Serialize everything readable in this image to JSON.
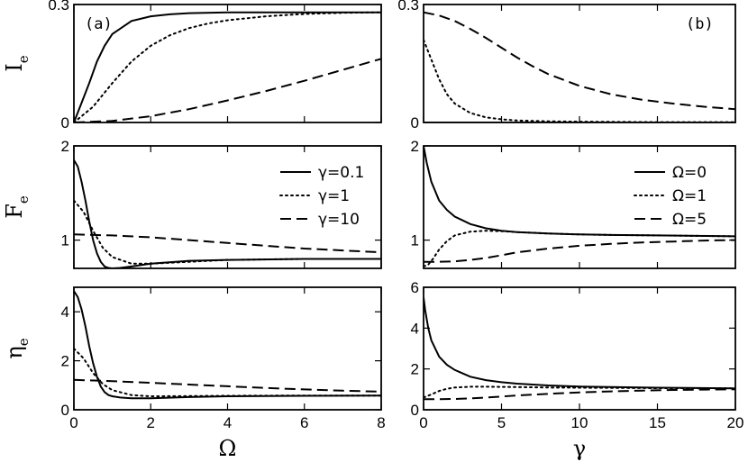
{
  "chart_data": [
    {
      "id": "ie-omega",
      "type": "line",
      "panel_tag": "(a)",
      "ylabel": "I",
      "ylabel_sub": "e",
      "xlabel": "",
      "xlim": [
        0,
        8
      ],
      "ylim": [
        0,
        0.3
      ],
      "xticks": [
        0,
        2,
        4,
        6,
        8
      ],
      "xticklabels": [],
      "yticks": [
        0,
        0.3
      ],
      "yticklabels": [
        "0",
        "0.3"
      ],
      "legend": null,
      "series": [
        {
          "name": "γ=0.1",
          "dash": "solid",
          "x": [
            0,
            0.2,
            0.4,
            0.6,
            0.8,
            1,
            1.5,
            2,
            2.5,
            3,
            4,
            5,
            6,
            7,
            8
          ],
          "y": [
            0,
            0.05,
            0.1,
            0.155,
            0.195,
            0.225,
            0.258,
            0.27,
            0.275,
            0.278,
            0.28,
            0.28,
            0.28,
            0.28,
            0.28
          ]
        },
        {
          "name": "γ=1",
          "dash": "dotted",
          "x": [
            0,
            0.5,
            1,
            1.5,
            2,
            2.5,
            3,
            3.5,
            4,
            5,
            6,
            7,
            8
          ],
          "y": [
            0,
            0.04,
            0.1,
            0.155,
            0.195,
            0.222,
            0.24,
            0.252,
            0.26,
            0.27,
            0.276,
            0.279,
            0.28
          ]
        },
        {
          "name": "γ=10",
          "dash": "dashed",
          "x": [
            0,
            1,
            2,
            3,
            4,
            5,
            6,
            7,
            8
          ],
          "y": [
            0,
            0.004,
            0.016,
            0.034,
            0.056,
            0.08,
            0.106,
            0.134,
            0.162
          ]
        }
      ]
    },
    {
      "id": "ie-gamma",
      "type": "line",
      "panel_tag": "(b)",
      "ylabel": "",
      "ylabel_sub": "",
      "xlabel": "",
      "xlim": [
        0,
        20
      ],
      "ylim": [
        0,
        0.3
      ],
      "xticks": [
        0,
        5,
        10,
        15,
        20
      ],
      "xticklabels": [],
      "yticks": [
        0,
        0.3
      ],
      "yticklabels": [
        "0",
        "0.3"
      ],
      "legend": null,
      "series": [
        {
          "name": "Ω=0",
          "dash": "solid",
          "x": [
            0,
            20
          ],
          "y": [
            0,
            0
          ]
        },
        {
          "name": "Ω=1",
          "dash": "dotted",
          "x": [
            0,
            0.5,
            1,
            1.5,
            2,
            3,
            4,
            5,
            6,
            8,
            10,
            15,
            20
          ],
          "y": [
            0.21,
            0.16,
            0.11,
            0.072,
            0.048,
            0.024,
            0.013,
            0.008,
            0.005,
            0.003,
            0.002,
            0.001,
            0.001
          ]
        },
        {
          "name": "Ω=5",
          "dash": "dashed",
          "x": [
            0,
            1,
            2,
            3,
            4,
            5,
            6,
            7,
            8,
            10,
            12,
            14,
            16,
            18,
            20
          ],
          "y": [
            0.28,
            0.272,
            0.258,
            0.238,
            0.215,
            0.19,
            0.165,
            0.143,
            0.123,
            0.093,
            0.072,
            0.058,
            0.048,
            0.04,
            0.034
          ]
        }
      ]
    },
    {
      "id": "fe-omega",
      "type": "line",
      "panel_tag": "",
      "ylabel": "F",
      "ylabel_sub": "e",
      "xlabel": "",
      "xlim": [
        0,
        8
      ],
      "ylim": [
        0.7,
        2.0
      ],
      "xticks": [
        0,
        2,
        4,
        6,
        8
      ],
      "xticklabels": [],
      "yticks": [
        1,
        2
      ],
      "yticklabels": [
        "1",
        "2"
      ],
      "legend": {
        "position": "top-right",
        "entries": [
          {
            "label": "γ=0.1",
            "dash": "solid"
          },
          {
            "label": "γ=1",
            "dash": "dotted"
          },
          {
            "label": "γ=10",
            "dash": "dashed"
          }
        ]
      },
      "series": [
        {
          "name": "γ=0.1",
          "dash": "solid",
          "x": [
            0,
            0.1,
            0.2,
            0.3,
            0.4,
            0.5,
            0.6,
            0.7,
            0.8,
            0.9,
            1,
            1.2,
            1.5,
            2,
            3,
            4,
            6,
            8
          ],
          "y": [
            1.85,
            1.78,
            1.62,
            1.42,
            1.2,
            1.0,
            0.86,
            0.77,
            0.72,
            0.705,
            0.7,
            0.705,
            0.72,
            0.75,
            0.78,
            0.79,
            0.8,
            0.8
          ]
        },
        {
          "name": "γ=1",
          "dash": "dotted",
          "x": [
            0,
            0.25,
            0.5,
            0.75,
            1,
            1.5,
            2,
            3,
            4,
            6,
            8
          ],
          "y": [
            1.42,
            1.3,
            1.1,
            0.92,
            0.82,
            0.75,
            0.75,
            0.77,
            0.79,
            0.8,
            0.8
          ]
        },
        {
          "name": "γ=10",
          "dash": "dashed",
          "x": [
            0,
            1,
            2,
            3,
            4,
            5,
            6,
            7,
            8
          ],
          "y": [
            1.06,
            1.05,
            1.03,
            1.0,
            0.97,
            0.94,
            0.91,
            0.89,
            0.87
          ]
        }
      ]
    },
    {
      "id": "fe-gamma",
      "type": "line",
      "panel_tag": "",
      "ylabel": "",
      "ylabel_sub": "",
      "xlabel": "",
      "xlim": [
        0,
        20
      ],
      "ylim": [
        0.7,
        2.0
      ],
      "xticks": [
        0,
        5,
        10,
        15,
        20
      ],
      "xticklabels": [],
      "yticks": [
        1,
        2
      ],
      "yticklabels": [
        "1",
        "2"
      ],
      "legend": {
        "position": "top-right",
        "entries": [
          {
            "label": "Ω=0",
            "dash": "solid"
          },
          {
            "label": "Ω=1",
            "dash": "dotted"
          },
          {
            "label": "Ω=5",
            "dash": "dashed"
          }
        ]
      },
      "series": [
        {
          "name": "Ω=0",
          "dash": "solid",
          "x": [
            0,
            0.2,
            0.5,
            1,
            1.5,
            2,
            3,
            4,
            5,
            6,
            8,
            10,
            12,
            15,
            20
          ],
          "y": [
            2.0,
            1.82,
            1.62,
            1.42,
            1.32,
            1.25,
            1.17,
            1.125,
            1.1,
            1.085,
            1.07,
            1.06,
            1.055,
            1.05,
            1.04
          ]
        },
        {
          "name": "Ω=1",
          "dash": "dotted",
          "x": [
            0,
            0.3,
            0.6,
            1,
            1.5,
            2,
            3,
            4,
            5,
            6,
            8,
            10,
            12,
            15,
            20
          ],
          "y": [
            0.72,
            0.74,
            0.8,
            0.9,
            0.99,
            1.05,
            1.09,
            1.1,
            1.095,
            1.085,
            1.07,
            1.06,
            1.055,
            1.05,
            1.04
          ]
        },
        {
          "name": "Ω=5",
          "dash": "dashed",
          "x": [
            0,
            1,
            2,
            3,
            4,
            5,
            6,
            7,
            8,
            10,
            12,
            14,
            16,
            18,
            20
          ],
          "y": [
            0.77,
            0.77,
            0.775,
            0.79,
            0.81,
            0.84,
            0.87,
            0.89,
            0.91,
            0.94,
            0.96,
            0.975,
            0.985,
            0.995,
            1.0
          ]
        }
      ]
    },
    {
      "id": "eta-omega",
      "type": "line",
      "panel_tag": "",
      "ylabel": "η",
      "ylabel_sub": "e",
      "xlabel": "Ω",
      "xlim": [
        0,
        8
      ],
      "ylim": [
        0,
        5.0
      ],
      "xticks": [
        0,
        2,
        4,
        6,
        8
      ],
      "xticklabels": [
        "0",
        "2",
        "4",
        "6",
        "8"
      ],
      "yticks": [
        0,
        2,
        4
      ],
      "yticklabels": [
        "0",
        "2",
        "4"
      ],
      "legend": null,
      "series": [
        {
          "name": "γ=0.1",
          "dash": "solid",
          "x": [
            0,
            0.1,
            0.2,
            0.3,
            0.4,
            0.5,
            0.6,
            0.7,
            0.8,
            0.9,
            1,
            1.2,
            1.5,
            2,
            3,
            4,
            6,
            8
          ],
          "y": [
            4.85,
            4.6,
            4.1,
            3.4,
            2.6,
            1.9,
            1.35,
            0.95,
            0.72,
            0.6,
            0.55,
            0.5,
            0.47,
            0.47,
            0.52,
            0.55,
            0.57,
            0.58
          ]
        },
        {
          "name": "γ=1",
          "dash": "dotted",
          "x": [
            0,
            0.25,
            0.5,
            0.75,
            1,
            1.5,
            2,
            3,
            4,
            6,
            8
          ],
          "y": [
            2.5,
            2.1,
            1.5,
            1.05,
            0.8,
            0.6,
            0.55,
            0.56,
            0.57,
            0.58,
            0.58
          ]
        },
        {
          "name": "γ=10",
          "dash": "dashed",
          "x": [
            0,
            1,
            2,
            3,
            4,
            5,
            6,
            7,
            8
          ],
          "y": [
            1.22,
            1.17,
            1.1,
            1.03,
            0.96,
            0.89,
            0.83,
            0.78,
            0.74
          ]
        }
      ]
    },
    {
      "id": "eta-gamma",
      "type": "line",
      "panel_tag": "",
      "ylabel": "",
      "ylabel_sub": "",
      "xlabel": "γ",
      "xlim": [
        0,
        20
      ],
      "ylim": [
        0,
        6.0
      ],
      "xticks": [
        0,
        5,
        10,
        15,
        20
      ],
      "xticklabels": [
        "0",
        "5",
        "10",
        "15",
        "20"
      ],
      "yticks": [
        0,
        2,
        4,
        6
      ],
      "yticklabels": [
        "0",
        "2",
        "4",
        "6"
      ],
      "legend": null,
      "series": [
        {
          "name": "Ω=0",
          "dash": "solid",
          "x": [
            0,
            0.1,
            0.3,
            0.5,
            1,
            1.5,
            2,
            3,
            4,
            5,
            6,
            8,
            10,
            12,
            15,
            20
          ],
          "y": [
            5.5,
            4.9,
            4.0,
            3.4,
            2.6,
            2.2,
            1.95,
            1.62,
            1.45,
            1.35,
            1.28,
            1.19,
            1.14,
            1.11,
            1.08,
            1.05
          ]
        },
        {
          "name": "Ω=1",
          "dash": "dotted",
          "x": [
            0,
            0.5,
            1,
            1.5,
            2,
            3,
            4,
            5,
            6,
            8,
            10,
            12,
            15,
            20
          ],
          "y": [
            0.6,
            0.75,
            0.92,
            1.03,
            1.09,
            1.13,
            1.13,
            1.12,
            1.11,
            1.09,
            1.08,
            1.07,
            1.06,
            1.05
          ]
        },
        {
          "name": "Ω=5",
          "dash": "dashed",
          "x": [
            0,
            1,
            2,
            3,
            4,
            5,
            6,
            8,
            10,
            12,
            14,
            16,
            18,
            20
          ],
          "y": [
            0.52,
            0.52,
            0.53,
            0.56,
            0.6,
            0.65,
            0.7,
            0.78,
            0.85,
            0.9,
            0.94,
            0.97,
            0.99,
            1.0
          ]
        }
      ]
    }
  ]
}
